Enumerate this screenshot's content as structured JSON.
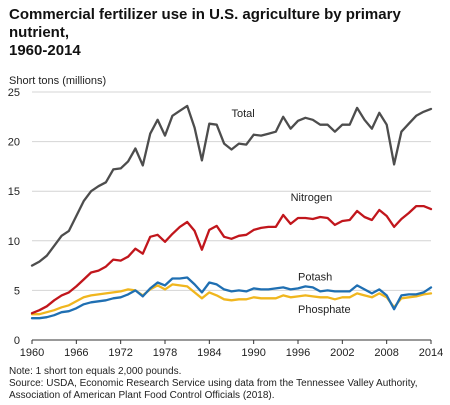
{
  "title_lines": [
    "Commercial fertilizer use in U.S. agriculture by primary nutrient,",
    "1960-2014"
  ],
  "footer": {
    "note": "Note: 1 short ton equals 2,000 pounds.",
    "source": "Source: USDA, Economic Research Service using data from the Tennessee Valley Authority, Association of American Plant Food Control Officials (2018)."
  },
  "colors": {
    "total": "#4d4d4d",
    "nitrogen": "#c1161c",
    "potash": "#1f6fb2",
    "phosphate": "#f0b61e",
    "grid": "#d4d4d4",
    "axis": "#333333"
  },
  "chart_data": {
    "type": "line",
    "title": "Commercial fertilizer use in U.S. agriculture by primary nutrient, 1960-2014",
    "xlabel": "",
    "ylabel": "Short tons (millions)",
    "xlim": [
      1960,
      2014
    ],
    "ylim": [
      0,
      25
    ],
    "xticks": [
      1960,
      1966,
      1972,
      1978,
      1984,
      1990,
      1996,
      2002,
      2008,
      2014
    ],
    "yticks": [
      0,
      5,
      10,
      15,
      20,
      25
    ],
    "grid": true,
    "legend": "inline labels",
    "x": [
      1960,
      1961,
      1962,
      1963,
      1964,
      1965,
      1966,
      1967,
      1968,
      1969,
      1970,
      1971,
      1972,
      1973,
      1974,
      1975,
      1976,
      1977,
      1978,
      1979,
      1980,
      1981,
      1982,
      1983,
      1984,
      1985,
      1986,
      1987,
      1988,
      1989,
      1990,
      1991,
      1992,
      1993,
      1994,
      1995,
      1996,
      1997,
      1998,
      1999,
      2000,
      2001,
      2002,
      2003,
      2004,
      2005,
      2006,
      2007,
      2008,
      2009,
      2010,
      2011,
      2012,
      2013,
      2014
    ],
    "series": [
      {
        "name": "Total",
        "key": "total",
        "label_position": {
          "x": 1987,
          "y": 22.5
        },
        "values": [
          7.5,
          7.9,
          8.5,
          9.5,
          10.5,
          11.0,
          12.5,
          14.0,
          15.0,
          15.5,
          15.9,
          17.2,
          17.3,
          18.0,
          19.3,
          17.6,
          20.8,
          22.2,
          20.6,
          22.6,
          23.1,
          23.6,
          21.4,
          18.1,
          21.8,
          21.7,
          19.8,
          19.2,
          19.8,
          19.7,
          20.7,
          20.6,
          20.8,
          21.0,
          22.5,
          21.3,
          22.1,
          22.4,
          22.2,
          21.7,
          21.7,
          21.0,
          21.7,
          21.7,
          23.4,
          22.2,
          21.3,
          22.9,
          21.7,
          17.7,
          21.0,
          21.8,
          22.6,
          23.0,
          23.3
        ]
      },
      {
        "name": "Nitrogen",
        "key": "nitrogen",
        "label_position": {
          "x": 1995,
          "y": 14.0
        },
        "values": [
          2.7,
          3.0,
          3.4,
          4.0,
          4.5,
          4.8,
          5.4,
          6.1,
          6.8,
          7.0,
          7.4,
          8.1,
          8.0,
          8.4,
          9.2,
          8.7,
          10.4,
          10.6,
          9.9,
          10.7,
          11.4,
          11.9,
          11.0,
          9.1,
          11.1,
          11.5,
          10.4,
          10.2,
          10.5,
          10.6,
          11.1,
          11.3,
          11.4,
          11.4,
          12.6,
          11.7,
          12.3,
          12.3,
          12.2,
          12.4,
          12.3,
          11.6,
          12.0,
          12.1,
          13.0,
          12.4,
          12.1,
          13.1,
          12.5,
          11.4,
          12.2,
          12.8,
          13.5,
          13.5,
          13.2
        ]
      },
      {
        "name": "Potash",
        "key": "potash",
        "label_position": {
          "x": 1996,
          "y": 6.0
        },
        "values": [
          2.2,
          2.2,
          2.3,
          2.5,
          2.8,
          2.9,
          3.2,
          3.6,
          3.8,
          3.9,
          4.0,
          4.2,
          4.3,
          4.6,
          5.0,
          4.4,
          5.2,
          5.8,
          5.5,
          6.2,
          6.2,
          6.3,
          5.6,
          4.8,
          5.8,
          5.6,
          5.1,
          4.9,
          5.0,
          4.9,
          5.2,
          5.1,
          5.1,
          5.2,
          5.3,
          5.1,
          5.2,
          5.4,
          5.3,
          4.9,
          5.0,
          4.9,
          4.9,
          4.9,
          5.5,
          5.1,
          4.7,
          5.1,
          4.5,
          3.1,
          4.5,
          4.6,
          4.6,
          4.8,
          5.3
        ]
      },
      {
        "name": "Phosphate",
        "key": "phosphate",
        "label_position": {
          "x": 1996,
          "y": 2.7
        },
        "values": [
          2.6,
          2.6,
          2.8,
          3.0,
          3.3,
          3.5,
          3.9,
          4.3,
          4.5,
          4.6,
          4.7,
          4.8,
          4.9,
          5.1,
          5.0,
          4.5,
          5.1,
          5.5,
          5.1,
          5.6,
          5.5,
          5.4,
          4.8,
          4.2,
          4.8,
          4.5,
          4.1,
          4.0,
          4.1,
          4.1,
          4.3,
          4.2,
          4.2,
          4.2,
          4.5,
          4.3,
          4.4,
          4.5,
          4.4,
          4.3,
          4.3,
          4.1,
          4.3,
          4.3,
          4.7,
          4.5,
          4.3,
          4.7,
          4.3,
          3.3,
          4.2,
          4.3,
          4.4,
          4.6,
          4.7
        ]
      }
    ]
  }
}
